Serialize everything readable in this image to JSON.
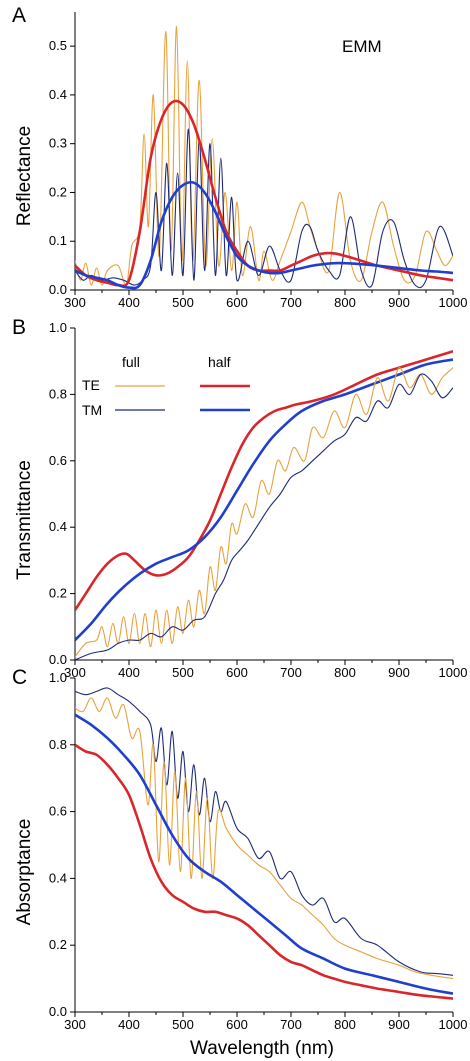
{
  "colors": {
    "te_full": "#E8A23C",
    "tm_full": "#1E2A78",
    "te_half": "#D9262B",
    "tm_half": "#1F3FCC"
  },
  "chart_data": [
    {
      "type": "line",
      "panel_label": "A",
      "annotation": "EMM",
      "ylabel": "Reflectance",
      "xlabel": "",
      "xlim": [
        300,
        1000
      ],
      "ylim": [
        0,
        0.57
      ],
      "xticks": [
        "300",
        "400",
        "500",
        "600",
        "700",
        "800",
        "900",
        "1000"
      ],
      "yticks": [
        "0.0",
        "0.1",
        "0.2",
        "0.3",
        "0.4",
        "0.5"
      ],
      "series": [
        {
          "key": "te_full",
          "style": "thin",
          "x": [
            300,
            310,
            320,
            330,
            340,
            350,
            360,
            380,
            395,
            405,
            420,
            428,
            436,
            445,
            456,
            468,
            478,
            488,
            498,
            508,
            518,
            530,
            542,
            554,
            566,
            578,
            590,
            600,
            610,
            625,
            640,
            650,
            665,
            680,
            700,
            720,
            735,
            750,
            770,
            790,
            810,
            830,
            850,
            870,
            890,
            910,
            930,
            950,
            970,
            985,
            1000
          ],
          "values": [
            0.06,
            0.02,
            0.055,
            0.01,
            0.045,
            0.01,
            0.04,
            0.05,
            0.01,
            0.09,
            0.13,
            0.32,
            0.13,
            0.4,
            0.07,
            0.53,
            0.08,
            0.54,
            0.06,
            0.47,
            0.06,
            0.43,
            0.05,
            0.31,
            0.05,
            0.2,
            0.04,
            0.18,
            0.03,
            0.13,
            0.02,
            0.08,
            0.02,
            0.06,
            0.12,
            0.18,
            0.13,
            0.08,
            0.04,
            0.2,
            0.06,
            0.02,
            0.12,
            0.18,
            0.09,
            0.02,
            0.03,
            0.12,
            0.08,
            0.05,
            0.07
          ]
        },
        {
          "key": "tm_full",
          "style": "thin",
          "x": [
            300,
            315,
            330,
            350,
            370,
            390,
            410,
            425,
            440,
            450,
            460,
            470,
            480,
            490,
            500,
            510,
            520,
            530,
            540,
            550,
            560,
            570,
            580,
            590,
            600,
            620,
            640,
            660,
            680,
            700,
            720,
            735,
            750,
            770,
            790,
            810,
            830,
            850,
            870,
            890,
            910,
            930,
            950,
            975,
            1000
          ],
          "values": [
            0.04,
            0.02,
            0.03,
            0.02,
            0.025,
            0.02,
            0.01,
            0.02,
            0.05,
            0.2,
            0.04,
            0.26,
            0.03,
            0.24,
            0.03,
            0.33,
            0.02,
            0.31,
            0.04,
            0.3,
            0.03,
            0.27,
            0.03,
            0.19,
            0.02,
            0.1,
            0.03,
            0.09,
            0.04,
            0.02,
            0.12,
            0.13,
            0.08,
            0.04,
            0.03,
            0.15,
            0.04,
            0.01,
            0.12,
            0.14,
            0.06,
            0.01,
            0.02,
            0.13,
            0.07
          ]
        },
        {
          "key": "te_half",
          "style": "thick",
          "x": [
            300,
            320,
            340,
            360,
            380,
            400,
            420,
            440,
            460,
            480,
            500,
            520,
            540,
            560,
            580,
            600,
            620,
            640,
            660,
            680,
            700,
            720,
            740,
            760,
            780,
            800,
            830,
            860,
            900,
            940,
            970,
            1000
          ],
          "values": [
            0.05,
            0.03,
            0.02,
            0.015,
            0.01,
            0.02,
            0.12,
            0.27,
            0.35,
            0.385,
            0.38,
            0.34,
            0.27,
            0.19,
            0.12,
            0.08,
            0.05,
            0.04,
            0.04,
            0.04,
            0.05,
            0.06,
            0.07,
            0.075,
            0.075,
            0.07,
            0.06,
            0.05,
            0.04,
            0.03,
            0.025,
            0.02
          ]
        },
        {
          "key": "tm_half",
          "style": "thick",
          "x": [
            300,
            320,
            340,
            360,
            380,
            400,
            420,
            440,
            460,
            480,
            500,
            520,
            540,
            560,
            580,
            600,
            620,
            640,
            660,
            680,
            700,
            720,
            740,
            760,
            780,
            800,
            830,
            860,
            900,
            940,
            970,
            1000
          ],
          "values": [
            0.04,
            0.03,
            0.025,
            0.02,
            0.01,
            0.005,
            0.01,
            0.06,
            0.14,
            0.19,
            0.215,
            0.22,
            0.2,
            0.16,
            0.11,
            0.07,
            0.05,
            0.04,
            0.035,
            0.035,
            0.04,
            0.045,
            0.05,
            0.053,
            0.055,
            0.055,
            0.053,
            0.05,
            0.045,
            0.04,
            0.038,
            0.035
          ]
        }
      ]
    },
    {
      "type": "line",
      "panel_label": "B",
      "ylabel": "Transmittance",
      "xlabel": "",
      "xlim": [
        300,
        1000
      ],
      "ylim": [
        0,
        1.0
      ],
      "xticks": [
        "300",
        "400",
        "500",
        "600",
        "700",
        "800",
        "900",
        "1000"
      ],
      "yticks": [
        "0.0",
        "0.2",
        "0.4",
        "0.6",
        "0.8",
        "1.0"
      ],
      "legend": {
        "placement": "top-left",
        "col_full": "full",
        "col_half": "half",
        "row_te": "TE",
        "row_tm": "TM"
      },
      "series": [
        {
          "key": "te_half",
          "style": "thick",
          "x": [
            300,
            320,
            340,
            360,
            380,
            395,
            410,
            430,
            450,
            470,
            490,
            510,
            530,
            550,
            570,
            590,
            610,
            630,
            650,
            670,
            690,
            710,
            740,
            780,
            820,
            860,
            900,
            940,
            970,
            1000
          ],
          "values": [
            0.15,
            0.2,
            0.25,
            0.29,
            0.315,
            0.32,
            0.3,
            0.27,
            0.255,
            0.26,
            0.28,
            0.31,
            0.36,
            0.42,
            0.5,
            0.58,
            0.65,
            0.7,
            0.73,
            0.75,
            0.76,
            0.77,
            0.78,
            0.8,
            0.83,
            0.86,
            0.88,
            0.9,
            0.915,
            0.93
          ]
        },
        {
          "key": "tm_half",
          "style": "thick",
          "x": [
            300,
            330,
            360,
            390,
            420,
            450,
            480,
            510,
            540,
            570,
            600,
            630,
            660,
            690,
            720,
            760,
            800,
            850,
            900,
            950,
            1000
          ],
          "values": [
            0.06,
            0.11,
            0.17,
            0.22,
            0.26,
            0.29,
            0.31,
            0.33,
            0.37,
            0.43,
            0.51,
            0.59,
            0.66,
            0.71,
            0.75,
            0.78,
            0.8,
            0.83,
            0.86,
            0.89,
            0.905
          ]
        },
        {
          "key": "te_full",
          "style": "thin",
          "x": [
            300,
            320,
            340,
            350,
            360,
            370,
            380,
            390,
            400,
            410,
            420,
            430,
            440,
            450,
            460,
            470,
            480,
            490,
            500,
            510,
            520,
            530,
            540,
            550,
            560,
            570,
            580,
            590,
            600,
            615,
            630,
            645,
            660,
            675,
            690,
            705,
            725,
            740,
            760,
            780,
            800,
            820,
            840,
            860,
            880,
            900,
            920,
            940,
            960,
            980,
            1000
          ],
          "values": [
            0.01,
            0.05,
            0.06,
            0.1,
            0.04,
            0.11,
            0.05,
            0.13,
            0.05,
            0.14,
            0.05,
            0.14,
            0.04,
            0.15,
            0.05,
            0.15,
            0.05,
            0.16,
            0.08,
            0.18,
            0.1,
            0.21,
            0.14,
            0.28,
            0.21,
            0.34,
            0.29,
            0.41,
            0.38,
            0.47,
            0.43,
            0.54,
            0.5,
            0.6,
            0.57,
            0.64,
            0.6,
            0.7,
            0.67,
            0.75,
            0.7,
            0.8,
            0.74,
            0.85,
            0.78,
            0.88,
            0.82,
            0.86,
            0.8,
            0.85,
            0.88
          ]
        },
        {
          "key": "tm_full",
          "style": "thin",
          "x": [
            300,
            330,
            360,
            380,
            400,
            420,
            440,
            460,
            480,
            500,
            520,
            540,
            560,
            575,
            590,
            605,
            620,
            640,
            660,
            680,
            700,
            720,
            740,
            760,
            780,
            800,
            820,
            840,
            860,
            880,
            900,
            920,
            940,
            960,
            980,
            1000
          ],
          "values": [
            0.0,
            0.02,
            0.03,
            0.05,
            0.06,
            0.06,
            0.08,
            0.07,
            0.1,
            0.09,
            0.12,
            0.13,
            0.2,
            0.24,
            0.3,
            0.33,
            0.36,
            0.41,
            0.46,
            0.5,
            0.55,
            0.57,
            0.6,
            0.63,
            0.66,
            0.68,
            0.73,
            0.72,
            0.78,
            0.76,
            0.83,
            0.8,
            0.86,
            0.84,
            0.79,
            0.82
          ]
        }
      ]
    },
    {
      "type": "line",
      "panel_label": "C",
      "ylabel": "Absorptance",
      "xlabel": "Wavelength (nm)",
      "xlim": [
        300,
        1000
      ],
      "ylim": [
        0,
        1.0
      ],
      "xticks": [
        "300",
        "400",
        "500",
        "600",
        "700",
        "800",
        "900",
        "1000"
      ],
      "yticks": [
        "0.0",
        "0.2",
        "0.4",
        "0.6",
        "0.8",
        "1.0"
      ],
      "series": [
        {
          "key": "tm_full",
          "style": "thin",
          "x": [
            300,
            320,
            340,
            360,
            380,
            400,
            420,
            440,
            450,
            460,
            470,
            480,
            490,
            500,
            510,
            520,
            530,
            540,
            550,
            560,
            570,
            580,
            600,
            620,
            640,
            660,
            680,
            700,
            720,
            740,
            760,
            780,
            800,
            830,
            860,
            900,
            940,
            970,
            1000
          ],
          "values": [
            0.96,
            0.95,
            0.96,
            0.97,
            0.95,
            0.93,
            0.9,
            0.86,
            0.75,
            0.85,
            0.68,
            0.84,
            0.64,
            0.78,
            0.6,
            0.74,
            0.59,
            0.7,
            0.57,
            0.66,
            0.6,
            0.63,
            0.55,
            0.52,
            0.46,
            0.48,
            0.4,
            0.42,
            0.35,
            0.32,
            0.34,
            0.27,
            0.28,
            0.22,
            0.2,
            0.15,
            0.12,
            0.115,
            0.11
          ]
        },
        {
          "key": "te_full",
          "style": "thin",
          "x": [
            300,
            315,
            330,
            345,
            360,
            375,
            390,
            405,
            420,
            435,
            445,
            455,
            465,
            475,
            485,
            495,
            505,
            515,
            525,
            535,
            545,
            555,
            565,
            580,
            600,
            620,
            640,
            660,
            680,
            700,
            720,
            740,
            760,
            780,
            800,
            830,
            860,
            900,
            930,
            960,
            1000
          ],
          "values": [
            0.91,
            0.9,
            0.94,
            0.9,
            0.94,
            0.88,
            0.92,
            0.82,
            0.84,
            0.62,
            0.8,
            0.45,
            0.75,
            0.44,
            0.72,
            0.42,
            0.7,
            0.4,
            0.66,
            0.4,
            0.64,
            0.4,
            0.6,
            0.55,
            0.5,
            0.47,
            0.44,
            0.42,
            0.38,
            0.34,
            0.32,
            0.29,
            0.26,
            0.22,
            0.2,
            0.18,
            0.16,
            0.14,
            0.12,
            0.11,
            0.1
          ]
        },
        {
          "key": "tm_half",
          "style": "thick",
          "x": [
            300,
            330,
            360,
            390,
            420,
            450,
            480,
            510,
            540,
            570,
            600,
            630,
            660,
            690,
            720,
            760,
            800,
            850,
            900,
            950,
            1000
          ],
          "values": [
            0.89,
            0.86,
            0.82,
            0.77,
            0.71,
            0.62,
            0.53,
            0.46,
            0.42,
            0.39,
            0.35,
            0.31,
            0.27,
            0.23,
            0.19,
            0.16,
            0.13,
            0.11,
            0.09,
            0.07,
            0.055
          ]
        },
        {
          "key": "te_half",
          "style": "thick",
          "x": [
            300,
            320,
            340,
            360,
            380,
            400,
            420,
            440,
            460,
            480,
            500,
            520,
            540,
            560,
            580,
            600,
            620,
            640,
            660,
            680,
            700,
            720,
            740,
            760,
            780,
            800,
            830,
            860,
            900,
            940,
            970,
            1000
          ],
          "values": [
            0.8,
            0.78,
            0.77,
            0.74,
            0.7,
            0.65,
            0.56,
            0.46,
            0.39,
            0.35,
            0.33,
            0.31,
            0.3,
            0.3,
            0.29,
            0.28,
            0.26,
            0.23,
            0.2,
            0.17,
            0.15,
            0.14,
            0.125,
            0.11,
            0.1,
            0.09,
            0.08,
            0.07,
            0.06,
            0.05,
            0.045,
            0.04
          ]
        }
      ]
    }
  ]
}
